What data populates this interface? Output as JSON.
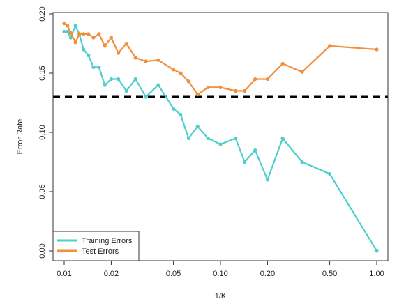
{
  "chart_data": {
    "type": "line",
    "xlabel": "1/K",
    "ylabel": "Error Rate",
    "x_scale": "log",
    "xlim": [
      0.01,
      1.0
    ],
    "ylim": [
      0.0,
      0.2
    ],
    "x_ticks": [
      "0.01",
      "0.02",
      "0.05",
      "0.10",
      "0.20",
      "0.50",
      "1.00"
    ],
    "y_ticks": [
      "0.00",
      "0.05",
      "0.10",
      "0.15",
      "0.20"
    ],
    "grid": false,
    "legend": {
      "placement": "bottom-left"
    },
    "series": [
      {
        "name": "Training Errors",
        "color": "#4ecfcb",
        "x": [
          0.01,
          0.0105,
          0.011,
          0.0118,
          0.0125,
          0.0133,
          0.0143,
          0.0154,
          0.0167,
          0.0182,
          0.02,
          0.0222,
          0.025,
          0.0286,
          0.0333,
          0.04,
          0.05,
          0.0556,
          0.0625,
          0.0714,
          0.0833,
          0.1,
          0.125,
          0.1429,
          0.1667,
          0.2,
          0.25,
          0.3333,
          0.5,
          1.0
        ],
        "y": [
          0.185,
          0.185,
          0.18,
          0.19,
          0.183,
          0.17,
          0.165,
          0.155,
          0.155,
          0.14,
          0.145,
          0.145,
          0.135,
          0.145,
          0.13,
          0.14,
          0.12,
          0.115,
          0.095,
          0.105,
          0.095,
          0.09,
          0.095,
          0.075,
          0.085,
          0.06,
          0.095,
          0.075,
          0.065,
          0.0
        ]
      },
      {
        "name": "Test Errors",
        "color": "#f28e3c",
        "x": [
          0.01,
          0.0105,
          0.011,
          0.0118,
          0.0125,
          0.0133,
          0.0143,
          0.0154,
          0.0167,
          0.0182,
          0.02,
          0.0222,
          0.025,
          0.0286,
          0.0333,
          0.04,
          0.05,
          0.0556,
          0.0625,
          0.0714,
          0.0833,
          0.1,
          0.125,
          0.1429,
          0.1667,
          0.2,
          0.25,
          0.3333,
          0.5,
          1.0
        ],
        "y": [
          0.192,
          0.19,
          0.184,
          0.176,
          0.183,
          0.183,
          0.183,
          0.18,
          0.183,
          0.173,
          0.18,
          0.167,
          0.175,
          0.163,
          0.16,
          0.161,
          0.153,
          0.15,
          0.143,
          0.132,
          0.138,
          0.138,
          0.135,
          0.135,
          0.145,
          0.145,
          0.158,
          0.151,
          0.173,
          0.17
        ]
      }
    ],
    "reference_line": {
      "y": 0.13,
      "color": "#000000",
      "style": "dashed"
    }
  }
}
